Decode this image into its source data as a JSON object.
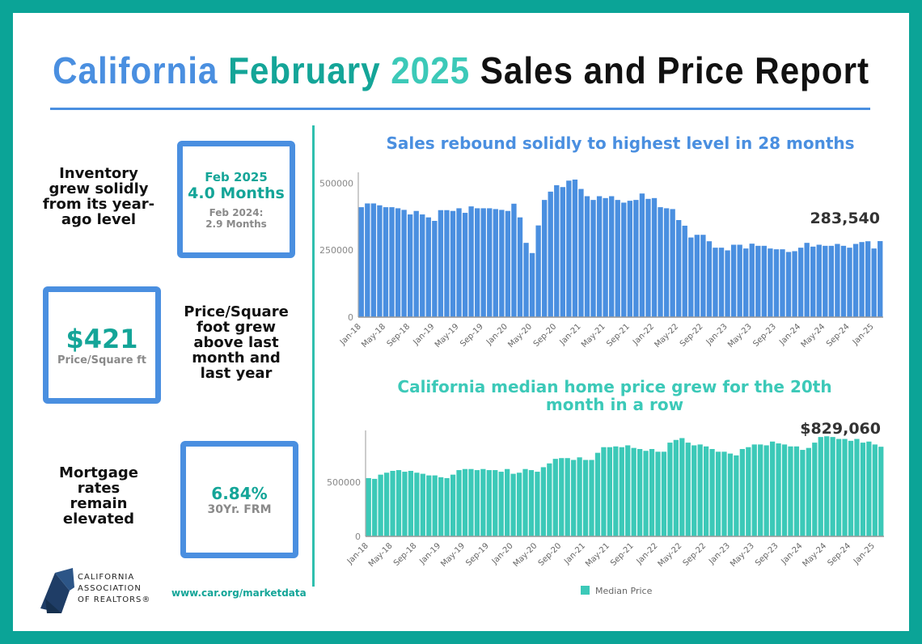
{
  "title": {
    "part1": "California",
    "part2": "February",
    "part3": "2025",
    "part4": "Sales and Price Report"
  },
  "colors": {
    "blue": "#4a8fe0",
    "teal": "#14a598",
    "light_teal": "#3cc9b8",
    "border": "#0ba497",
    "bar_price": "#3cc9b8"
  },
  "inventory": {
    "description": "Inventory grew solidly from its year-ago level",
    "current_label": "Feb 2025",
    "current_value": "4.0 Months",
    "prior_label": "Feb 2024:",
    "prior_value": "2.9 Months"
  },
  "price_sqft": {
    "value": "$421",
    "label": "Price/Square ft",
    "description": "Price/Square foot grew above last month and last year"
  },
  "mortgage": {
    "description": "Mortgage rates remain elevated",
    "value": "6.84%",
    "label": "30Yr. FRM"
  },
  "footer": {
    "logo_text": [
      "CALIFORNIA",
      "ASSOCIATION",
      "OF REALTORS®"
    ],
    "url": "www.car.org/marketdata"
  },
  "chart_data": [
    {
      "type": "bar",
      "title": "Sales rebound solidly to highest level in 28 months",
      "annotation": "283,540",
      "ylim": [
        0,
        540000
      ],
      "yticks": [
        "0",
        "250000",
        "500000"
      ],
      "tick_labels": [
        "Jan-18",
        "May-18",
        "Sep-18",
        "Jan-19",
        "May-19",
        "Sep-19",
        "Jan-20",
        "May-20",
        "Sep-20",
        "Jan-21",
        "May-21",
        "Sep-21",
        "Jan-22",
        "May-22",
        "Sep-22",
        "Jan-23",
        "May-23",
        "Sep-23",
        "Jan-24",
        "May-24",
        "Sep-24",
        "Jan-25"
      ],
      "color": "#4a8fe0",
      "values": [
        410000,
        424000,
        424000,
        417000,
        410000,
        410000,
        406000,
        400000,
        383000,
        396000,
        383000,
        372000,
        359000,
        399000,
        399000,
        396000,
        406000,
        389000,
        413000,
        406000,
        406000,
        406000,
        403000,
        400000,
        396000,
        423000,
        372000,
        277000,
        239000,
        342000,
        437000,
        468000,
        492000,
        485000,
        509000,
        513000,
        478000,
        451000,
        437000,
        451000,
        444000,
        451000,
        437000,
        427000,
        434000,
        437000,
        461000,
        441000,
        444000,
        410000,
        406000,
        403000,
        362000,
        341000,
        297000,
        307000,
        307000,
        283000,
        259000,
        259000,
        249000,
        270000,
        270000,
        256000,
        274000,
        266000,
        266000,
        256000,
        253000,
        253000,
        243000,
        246000,
        259000,
        277000,
        263000,
        270000,
        266000,
        266000,
        273000,
        266000,
        259000,
        273000,
        280000,
        283000,
        256000,
        283540
      ]
    },
    {
      "type": "bar",
      "title": "California median home price grew for the 20th month in a row",
      "annotation": "$829,060",
      "legend": "Median Price",
      "legend_position": "bottom",
      "ylim": [
        0,
        980000
      ],
      "yticks": [
        "0",
        "500000"
      ],
      "tick_labels": [
        "Jan-18",
        "May-18",
        "Sep-18",
        "Jan-19",
        "May-19",
        "Sep-19",
        "Jan-20",
        "May-20",
        "Sep-20",
        "Jan-21",
        "May-21",
        "Sep-21",
        "Jan-22",
        "May-22",
        "Sep-22",
        "Jan-23",
        "May-23",
        "Sep-23",
        "Jan-24",
        "May-24",
        "Sep-24",
        "Jan-25"
      ],
      "color": "#3cc9b8",
      "values": [
        539000,
        532000,
        571000,
        589000,
        606000,
        613000,
        598000,
        606000,
        589000,
        579000,
        564000,
        564000,
        547000,
        539000,
        571000,
        613000,
        623000,
        623000,
        613000,
        623000,
        613000,
        613000,
        598000,
        623000,
        579000,
        589000,
        623000,
        613000,
        598000,
        640000,
        675000,
        717000,
        724000,
        724000,
        707000,
        731000,
        707000,
        707000,
        773000,
        825000,
        825000,
        832000,
        825000,
        842000,
        818000,
        808000,
        791000,
        808000,
        783000,
        783000,
        867000,
        892000,
        909000,
        867000,
        842000,
        850000,
        832000,
        808000,
        783000,
        783000,
        766000,
        749000,
        808000,
        825000,
        850000,
        850000,
        842000,
        877000,
        860000,
        850000,
        832000,
        832000,
        800000,
        818000,
        867000,
        919000,
        926000,
        919000,
        901000,
        901000,
        884000,
        901000,
        867000,
        877000,
        850000,
        829060
      ]
    }
  ]
}
